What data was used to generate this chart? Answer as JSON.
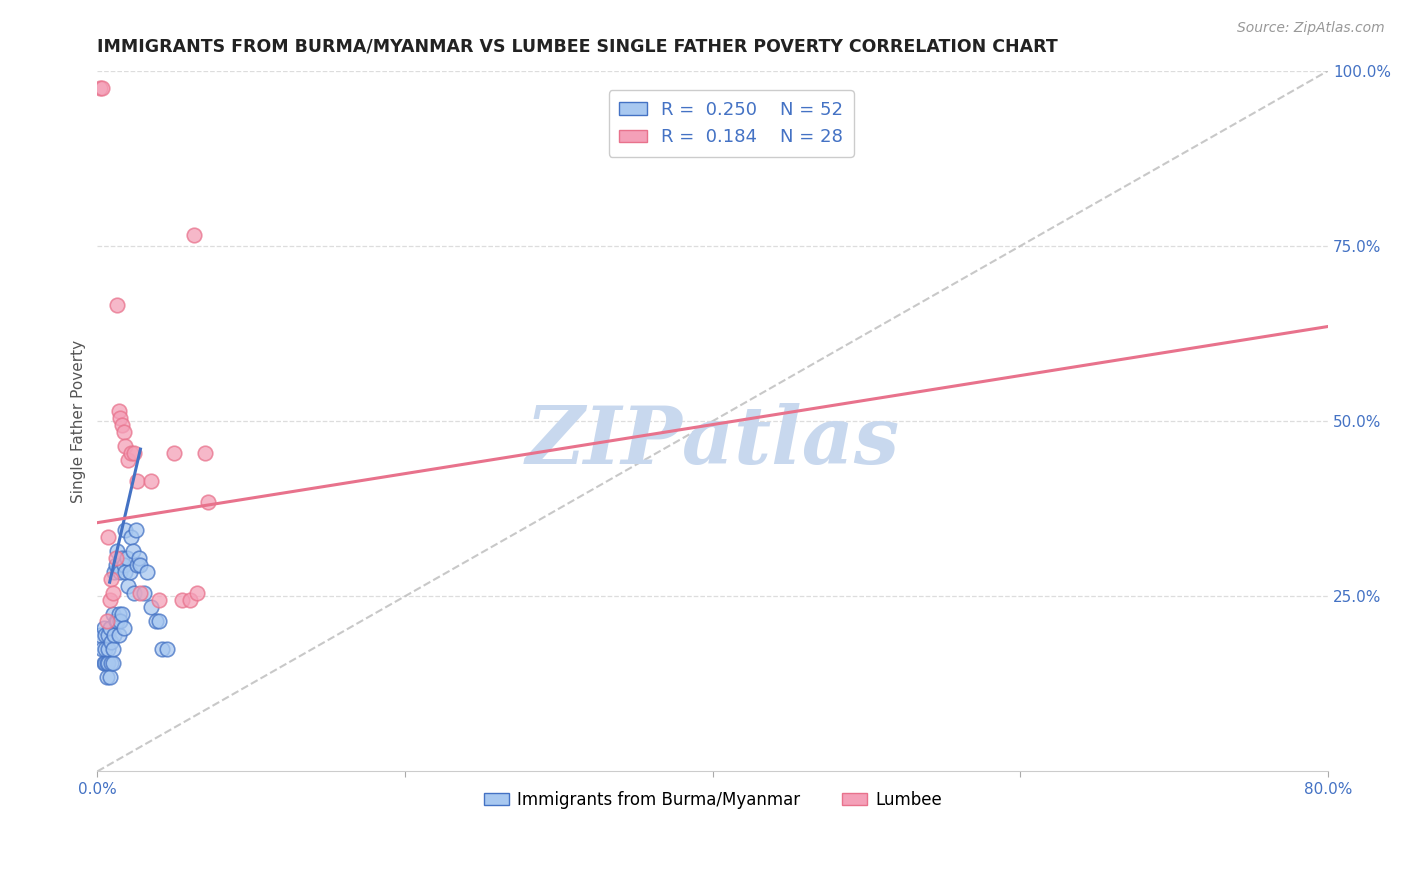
{
  "title": "IMMIGRANTS FROM BURMA/MYANMAR VS LUMBEE SINGLE FATHER POVERTY CORRELATION CHART",
  "source": "Source: ZipAtlas.com",
  "ylabel": "Single Father Poverty",
  "legend_label1": "Immigrants from Burma/Myanmar",
  "legend_label2": "Lumbee",
  "R1": 0.25,
  "N1": 52,
  "R2": 0.184,
  "N2": 28,
  "xlim": [
    0.0,
    0.8
  ],
  "ylim": [
    0.0,
    1.0
  ],
  "yticks_right": [
    0.0,
    0.25,
    0.5,
    0.75,
    1.0
  ],
  "ytick_labels_right": [
    "",
    "25.0%",
    "50.0%",
    "75.0%",
    "100.0%"
  ],
  "color_blue": "#A8C8F0",
  "color_pink": "#F4A0B8",
  "color_blue_line": "#4472C4",
  "color_pink_line": "#E8728C",
  "color_diag": "#BBBBBB",
  "title_color": "#222222",
  "right_axis_color": "#4472C4",
  "watermark_color": "#C8D8EE",
  "blue_scatter_x": [
    0.002,
    0.003,
    0.004,
    0.004,
    0.005,
    0.005,
    0.005,
    0.006,
    0.006,
    0.007,
    0.007,
    0.007,
    0.008,
    0.008,
    0.009,
    0.009,
    0.01,
    0.01,
    0.01,
    0.011,
    0.011,
    0.012,
    0.012,
    0.013,
    0.013,
    0.014,
    0.014,
    0.015,
    0.015,
    0.016,
    0.016,
    0.017,
    0.017,
    0.018,
    0.018,
    0.019,
    0.02,
    0.021,
    0.022,
    0.023,
    0.024,
    0.025,
    0.026,
    0.027,
    0.028,
    0.03,
    0.032,
    0.035,
    0.038,
    0.04,
    0.042,
    0.045
  ],
  "blue_scatter_y": [
    0.195,
    0.175,
    0.205,
    0.155,
    0.155,
    0.175,
    0.195,
    0.135,
    0.155,
    0.155,
    0.175,
    0.195,
    0.135,
    0.205,
    0.155,
    0.185,
    0.155,
    0.175,
    0.225,
    0.195,
    0.285,
    0.215,
    0.295,
    0.215,
    0.315,
    0.225,
    0.195,
    0.285,
    0.215,
    0.225,
    0.305,
    0.205,
    0.295,
    0.285,
    0.345,
    0.305,
    0.265,
    0.285,
    0.335,
    0.315,
    0.255,
    0.345,
    0.295,
    0.305,
    0.295,
    0.255,
    0.285,
    0.235,
    0.215,
    0.215,
    0.175,
    0.175
  ],
  "pink_scatter_x": [
    0.002,
    0.003,
    0.006,
    0.007,
    0.008,
    0.009,
    0.01,
    0.012,
    0.013,
    0.014,
    0.015,
    0.016,
    0.017,
    0.018,
    0.02,
    0.022,
    0.024,
    0.026,
    0.028,
    0.035,
    0.04,
    0.05,
    0.055,
    0.06,
    0.063,
    0.065,
    0.07,
    0.072
  ],
  "pink_scatter_y": [
    0.975,
    0.975,
    0.215,
    0.335,
    0.245,
    0.275,
    0.255,
    0.305,
    0.665,
    0.515,
    0.505,
    0.495,
    0.485,
    0.465,
    0.445,
    0.455,
    0.455,
    0.415,
    0.255,
    0.415,
    0.245,
    0.455,
    0.245,
    0.245,
    0.765,
    0.255,
    0.455,
    0.385
  ],
  "blue_line_x": [
    0.008,
    0.028
  ],
  "blue_line_y": [
    0.27,
    0.46
  ],
  "pink_line_x": [
    0.0,
    0.8
  ],
  "pink_line_y": [
    0.355,
    0.635
  ],
  "diag_line_x": [
    0.0,
    0.8
  ],
  "diag_line_y": [
    0.0,
    1.0
  ]
}
